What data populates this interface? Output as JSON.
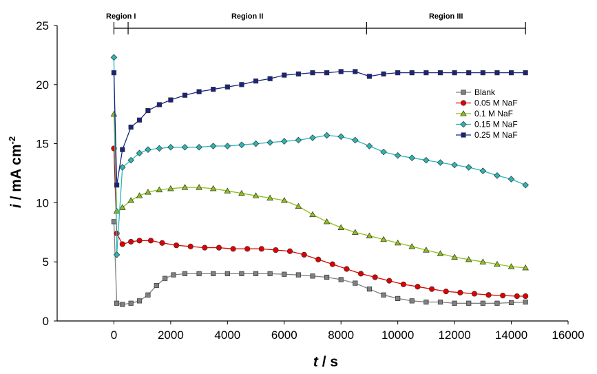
{
  "chart_data": {
    "type": "line",
    "title": "",
    "xlabel": "t / s",
    "ylabel": "i / mA cm-2",
    "xlabel_parts": {
      "var": "t",
      "rest": " / s"
    },
    "ylabel_parts": {
      "var": "i",
      "unit": " / mA cm",
      "exp": "-2"
    },
    "xlim": [
      -2000,
      16000
    ],
    "ylim": [
      0,
      25
    ],
    "xticks": [
      0,
      2000,
      4000,
      6000,
      8000,
      10000,
      12000,
      14000,
      16000
    ],
    "yticks": [
      0,
      5,
      10,
      15,
      20,
      25
    ],
    "grid": false,
    "legend_position": "top-right",
    "regions": [
      {
        "label": "Region I",
        "from": 0,
        "to": 500
      },
      {
        "label": "Region II",
        "from": 500,
        "to": 8900
      },
      {
        "label": "Region III",
        "from": 8900,
        "to": 14500
      }
    ],
    "series": [
      {
        "name": "Blank",
        "color": "#808080",
        "marker": "square",
        "x": [
          0,
          100,
          300,
          600,
          900,
          1200,
          1500,
          1800,
          2100,
          2500,
          3000,
          3500,
          4000,
          4500,
          5000,
          5500,
          6000,
          6500,
          7000,
          7500,
          8000,
          8500,
          9000,
          9500,
          10000,
          10500,
          11000,
          11500,
          12000,
          12500,
          13000,
          13500,
          14000,
          14500
        ],
        "y": [
          8.4,
          1.5,
          1.4,
          1.5,
          1.7,
          2.2,
          3.0,
          3.6,
          3.9,
          4.0,
          4.0,
          4.0,
          4.0,
          4.0,
          4.0,
          4.0,
          3.95,
          3.9,
          3.8,
          3.7,
          3.5,
          3.2,
          2.7,
          2.2,
          1.9,
          1.7,
          1.6,
          1.6,
          1.5,
          1.5,
          1.5,
          1.5,
          1.55,
          1.6
        ]
      },
      {
        "name": "0.05 M NaF",
        "color": "#e00000",
        "marker": "circle",
        "x": [
          0,
          100,
          300,
          600,
          900,
          1300,
          1700,
          2200,
          2700,
          3200,
          3700,
          4200,
          4700,
          5200,
          5700,
          6200,
          6700,
          7200,
          7700,
          8200,
          8700,
          9200,
          9700,
          10200,
          10700,
          11200,
          11700,
          12200,
          12700,
          13200,
          13700,
          14200,
          14500
        ],
        "y": [
          14.6,
          7.4,
          6.5,
          6.7,
          6.8,
          6.8,
          6.6,
          6.4,
          6.3,
          6.2,
          6.2,
          6.1,
          6.1,
          6.1,
          6.0,
          5.9,
          5.6,
          5.2,
          4.8,
          4.4,
          4.0,
          3.7,
          3.4,
          3.1,
          2.9,
          2.7,
          2.5,
          2.4,
          2.3,
          2.2,
          2.15,
          2.1,
          2.1
        ]
      },
      {
        "name": "0.1 M NaF",
        "color": "#8cbf1a",
        "marker": "triangle",
        "x": [
          0,
          100,
          300,
          600,
          900,
          1200,
          1600,
          2000,
          2500,
          3000,
          3500,
          4000,
          4500,
          5000,
          5500,
          6000,
          6500,
          7000,
          7500,
          8000,
          8500,
          9000,
          9500,
          10000,
          10500,
          11000,
          11500,
          12000,
          12500,
          13000,
          13500,
          14000,
          14500
        ],
        "y": [
          17.5,
          9.3,
          9.6,
          10.2,
          10.6,
          10.9,
          11.1,
          11.2,
          11.3,
          11.3,
          11.2,
          11.0,
          10.8,
          10.6,
          10.4,
          10.2,
          9.7,
          9.0,
          8.4,
          7.9,
          7.5,
          7.2,
          6.9,
          6.6,
          6.3,
          6.0,
          5.7,
          5.4,
          5.2,
          5.0,
          4.8,
          4.6,
          4.5
        ]
      },
      {
        "name": "0.15 M NaF",
        "color": "#2bb5b5",
        "marker": "diamond",
        "x": [
          0,
          100,
          300,
          600,
          900,
          1200,
          1600,
          2000,
          2500,
          3000,
          3500,
          4000,
          4500,
          5000,
          5500,
          6000,
          6500,
          7000,
          7500,
          8000,
          8500,
          9000,
          9500,
          10000,
          10500,
          11000,
          11500,
          12000,
          12500,
          13000,
          13500,
          14000,
          14500
        ],
        "y": [
          22.3,
          5.6,
          13.0,
          13.6,
          14.2,
          14.5,
          14.6,
          14.7,
          14.7,
          14.7,
          14.8,
          14.8,
          14.9,
          15.0,
          15.1,
          15.2,
          15.3,
          15.5,
          15.7,
          15.6,
          15.3,
          14.8,
          14.3,
          14.0,
          13.8,
          13.6,
          13.4,
          13.2,
          13.0,
          12.7,
          12.3,
          12.0,
          11.5
        ]
      },
      {
        "name": "0.25 M NaF",
        "color": "#1a237e",
        "marker": "square",
        "x": [
          0,
          100,
          300,
          600,
          900,
          1200,
          1600,
          2000,
          2500,
          3000,
          3500,
          4000,
          4500,
          5000,
          5500,
          6000,
          6500,
          7000,
          7500,
          8000,
          8500,
          9000,
          9500,
          10000,
          10500,
          11000,
          11500,
          12000,
          12500,
          13000,
          13500,
          14000,
          14500
        ],
        "y": [
          21.0,
          11.5,
          14.5,
          16.4,
          17.0,
          17.8,
          18.3,
          18.7,
          19.1,
          19.4,
          19.6,
          19.8,
          20.0,
          20.3,
          20.5,
          20.8,
          20.9,
          21.0,
          21.0,
          21.1,
          21.1,
          20.7,
          20.9,
          21.0,
          21.0,
          21.0,
          21.0,
          21.0,
          21.0,
          21.0,
          21.0,
          21.0,
          21.0
        ]
      }
    ]
  }
}
